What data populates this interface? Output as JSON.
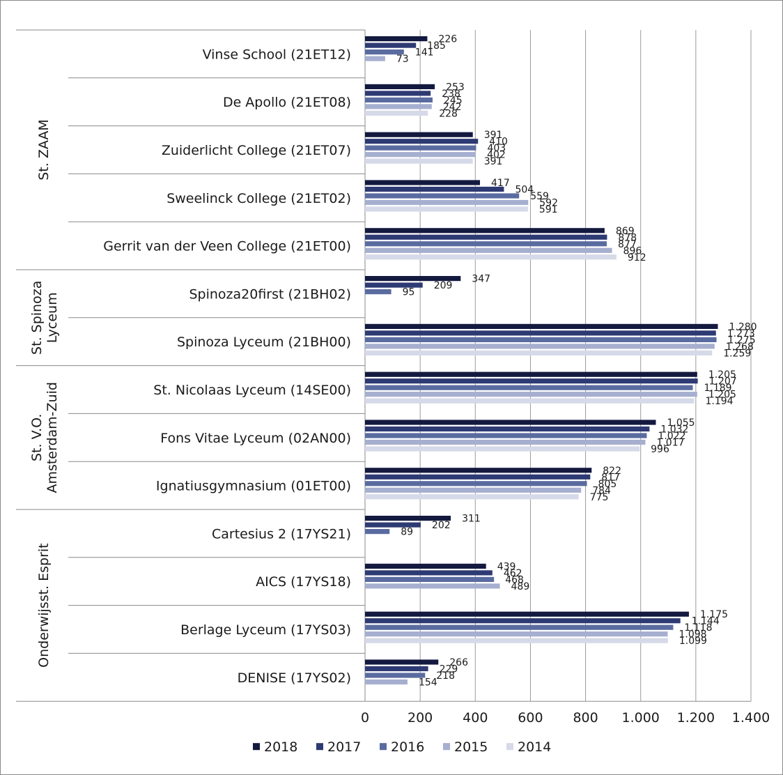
{
  "chart_data": {
    "type": "bar",
    "orientation": "horizontal",
    "grouping": "clustered",
    "xlim": [
      0,
      1400
    ],
    "xtick_labels": [
      "0",
      "200",
      "400",
      "600",
      "800",
      "1.000",
      "1.200",
      "1.400"
    ],
    "grid": "vertical",
    "legend_position": "bottom",
    "groups": [
      {
        "label": "St. ZAAM",
        "categories": [
          "Vinse School (21ET12)",
          "De Apollo (21ET08)",
          "Zuiderlicht College (21ET07)",
          "Sweelinck College (21ET02)",
          "Gerrit van der Veen College (21ET00)"
        ]
      },
      {
        "label": "St. Spinoza Lyceum",
        "categories": [
          "Spinoza20first (21BH02)",
          "Spinoza Lyceum (21BH00)"
        ]
      },
      {
        "label": "St. V.O. Amsterdam-Zuid",
        "categories": [
          "St. Nicolaas Lyceum (14SE00)",
          "Fons Vitae Lyceum (02AN00)",
          "Ignatiusgymnasium (01ET00)"
        ]
      },
      {
        "label": "Onderwijsst. Esprit",
        "categories": [
          "Cartesius 2 (17YS21)",
          "AICS (17YS18)",
          "Berlage Lyceum (17YS03)",
          "DENISE (17YS02)"
        ]
      }
    ],
    "categories": [
      "Vinse School (21ET12)",
      "De Apollo (21ET08)",
      "Zuiderlicht College (21ET07)",
      "Sweelinck College (21ET02)",
      "Gerrit van der Veen College (21ET00)",
      "Spinoza20first (21BH02)",
      "Spinoza Lyceum (21BH00)",
      "St. Nicolaas Lyceum (14SE00)",
      "Fons Vitae Lyceum (02AN00)",
      "Ignatiusgymnasium (01ET00)",
      "Cartesius 2 (17YS21)",
      "AICS (17YS18)",
      "Berlage Lyceum (17YS03)",
      "DENISE (17YS02)"
    ],
    "series": [
      {
        "name": "2018",
        "color": "#14193f",
        "values": [
          226,
          253,
          391,
          417,
          869,
          347,
          1280,
          1205,
          1055,
          822,
          311,
          439,
          1175,
          266
        ],
        "labels": [
          "226",
          "253",
          "391",
          "417",
          "869",
          "347",
          "1.280",
          "1.205",
          "1.055",
          "822",
          "311",
          "439",
          "1.175",
          "266"
        ]
      },
      {
        "name": "2017",
        "color": "#2e3a73",
        "values": [
          185,
          238,
          410,
          504,
          878,
          209,
          1273,
          1207,
          1032,
          817,
          202,
          462,
          1144,
          229
        ],
        "labels": [
          "185",
          "238",
          "410",
          "504",
          "878",
          "209",
          "1.273",
          "1.207",
          "1.032",
          "817",
          "202",
          "462",
          "1.144",
          "229"
        ]
      },
      {
        "name": "2016",
        "color": "#5a6ba0",
        "values": [
          141,
          245,
          403,
          559,
          877,
          95,
          1275,
          1189,
          1022,
          805,
          89,
          468,
          1118,
          218
        ],
        "labels": [
          "141",
          "245",
          "403",
          "559",
          "877",
          "95",
          "1.275",
          "1.189",
          "1.022",
          "805",
          "89",
          "468",
          "1.118",
          "218"
        ]
      },
      {
        "name": "2015",
        "color": "#a6afcf",
        "values": [
          73,
          242,
          402,
          592,
          896,
          null,
          1268,
          1205,
          1017,
          784,
          null,
          489,
          1098,
          154
        ],
        "labels": [
          "73",
          "242",
          "402",
          "592",
          "896",
          "",
          "1.268",
          "1.205",
          "1.017",
          "784",
          "",
          "489",
          "1.098",
          "154"
        ]
      },
      {
        "name": "2014",
        "color": "#d6d9e8",
        "values": [
          null,
          228,
          391,
          591,
          912,
          null,
          1259,
          1194,
          996,
          775,
          null,
          null,
          1099,
          null
        ],
        "labels": [
          "",
          "228",
          "391",
          "591",
          "912",
          "",
          "1.259",
          "1.194",
          "996",
          "775",
          "",
          "",
          "1.099",
          ""
        ]
      }
    ]
  }
}
